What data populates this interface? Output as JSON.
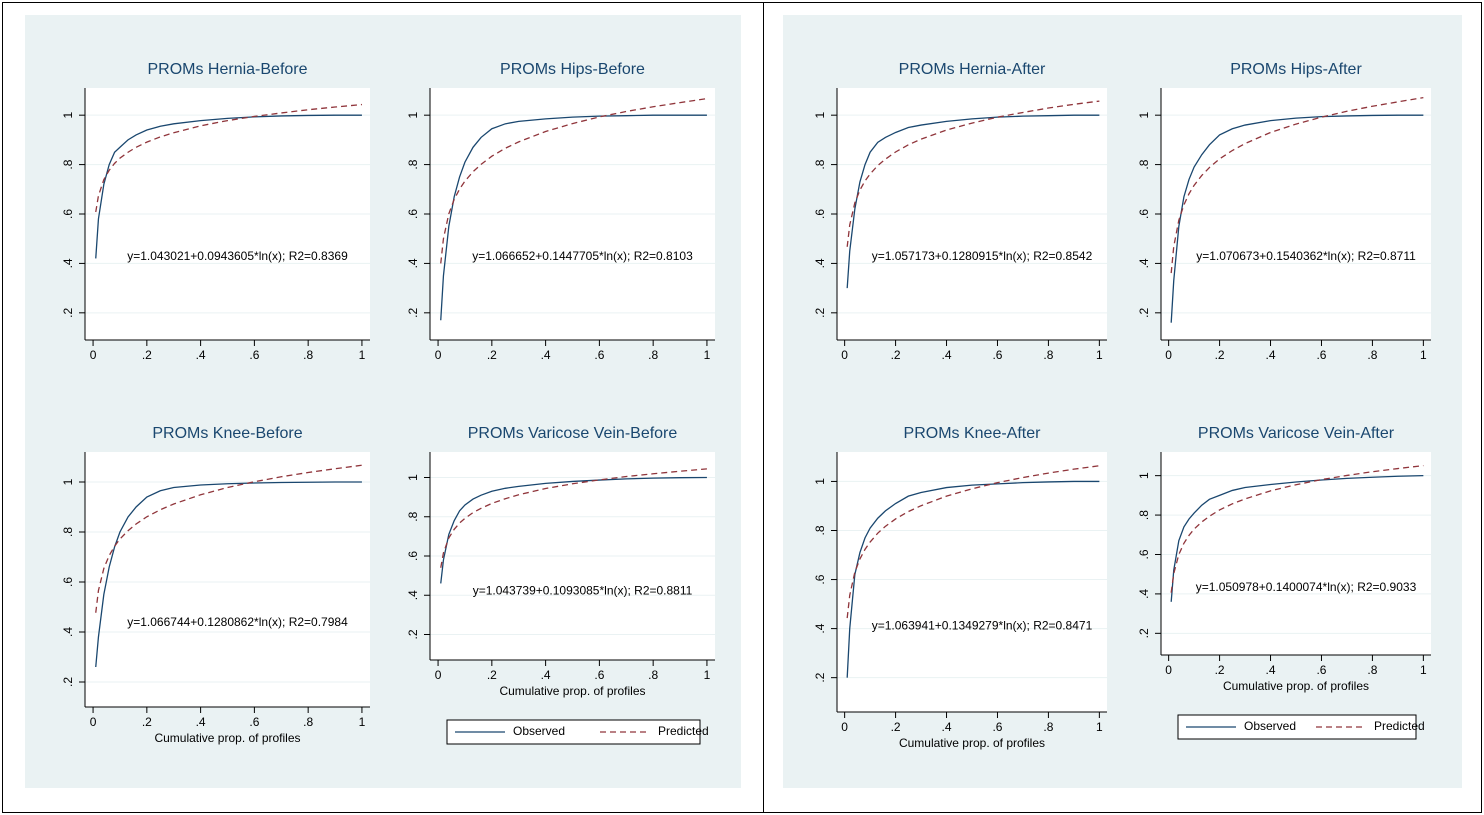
{
  "chart_data": [
    {
      "type": "line",
      "title": "PROMs Hernia-Before",
      "annotation": "y=1.043021+0.0943605*ln(x); R2=0.8369",
      "x": [
        0.01,
        0.02,
        0.04,
        0.06,
        0.08,
        0.1,
        0.13,
        0.16,
        0.2,
        0.25,
        0.3,
        0.4,
        0.5,
        0.6,
        0.7,
        0.8,
        0.9,
        1
      ],
      "series": [
        {
          "color": "#1a476f",
          "dash": false,
          "values": [
            0.42,
            0.58,
            0.72,
            0.8,
            0.85,
            0.87,
            0.9,
            0.92,
            0.94,
            0.955,
            0.965,
            0.978,
            0.987,
            0.993,
            0.997,
            0.999,
            1.0,
            1.0
          ]
        },
        {
          "color": "#90353b",
          "dash": true,
          "values": [
            0.608,
            0.674,
            0.739,
            0.777,
            0.805,
            0.826,
            0.85,
            0.87,
            0.891,
            0.912,
            0.929,
            0.957,
            0.978,
            0.995,
            1.009,
            1.022,
            1.033,
            1.043
          ]
        }
      ],
      "xlim": [
        -0.03,
        1.03
      ],
      "xticks": [
        0,
        {
          "value": 0.2,
          "label": ".2"
        },
        {
          "value": 0.4,
          "label": ".4"
        },
        {
          "value": 0.6,
          "label": ".6"
        },
        {
          "value": 0.8,
          "label": ".8"
        },
        1
      ],
      "ylim": [
        0.09,
        1.11
      ],
      "yticks": [
        {
          "value": 0.2,
          "label": ".2"
        },
        {
          "value": 0.4,
          "label": ".4"
        },
        {
          "value": 0.6,
          "label": ".6"
        },
        {
          "value": 0.8,
          "label": ".8"
        },
        1
      ],
      "grid": true
    },
    {
      "type": "line",
      "title": "PROMs Hips-Before",
      "annotation": "y=1.066652+0.1447705*ln(x); R2=0.8103",
      "x": [
        0.01,
        0.02,
        0.04,
        0.06,
        0.08,
        0.1,
        0.13,
        0.16,
        0.2,
        0.25,
        0.3,
        0.4,
        0.5,
        0.6,
        0.7,
        0.8,
        0.9,
        1
      ],
      "series": [
        {
          "color": "#1a476f",
          "dash": false,
          "values": [
            0.17,
            0.35,
            0.55,
            0.67,
            0.75,
            0.81,
            0.87,
            0.91,
            0.945,
            0.965,
            0.975,
            0.985,
            0.992,
            0.996,
            0.998,
            1.0,
            1.0,
            1.0
          ]
        },
        {
          "color": "#90353b",
          "dash": true,
          "values": [
            0.4,
            0.5,
            0.601,
            0.659,
            0.701,
            0.733,
            0.771,
            0.801,
            0.834,
            0.866,
            0.892,
            0.934,
            0.966,
            0.993,
            1.015,
            1.034,
            1.051,
            1.067
          ]
        }
      ],
      "xlim": [
        -0.03,
        1.03
      ],
      "xticks": [
        0,
        {
          "value": 0.2,
          "label": ".2"
        },
        {
          "value": 0.4,
          "label": ".4"
        },
        {
          "value": 0.6,
          "label": ".6"
        },
        {
          "value": 0.8,
          "label": ".8"
        },
        1
      ],
      "ylim": [
        0.09,
        1.11
      ],
      "yticks": [
        {
          "value": 0.2,
          "label": ".2"
        },
        {
          "value": 0.4,
          "label": ".4"
        },
        {
          "value": 0.6,
          "label": ".6"
        },
        {
          "value": 0.8,
          "label": ".8"
        },
        1
      ],
      "grid": true
    },
    {
      "type": "line",
      "title": "PROMs Knee-Before",
      "annotation": "y=1.066744+0.1280862*ln(x); R2=0.7984",
      "xlabel": "Cumulative prop. of profiles",
      "x": [
        0.01,
        0.02,
        0.04,
        0.06,
        0.08,
        0.1,
        0.13,
        0.16,
        0.2,
        0.25,
        0.3,
        0.4,
        0.5,
        0.6,
        0.7,
        0.8,
        0.9,
        1
      ],
      "series": [
        {
          "color": "#1a476f",
          "dash": false,
          "values": [
            0.26,
            0.38,
            0.55,
            0.66,
            0.74,
            0.8,
            0.86,
            0.9,
            0.94,
            0.965,
            0.978,
            0.988,
            0.993,
            0.996,
            0.998,
            0.999,
            1.0,
            1.0
          ]
        },
        {
          "color": "#90353b",
          "dash": true,
          "values": [
            0.477,
            0.566,
            0.654,
            0.706,
            0.743,
            0.772,
            0.805,
            0.832,
            0.861,
            0.889,
            0.912,
            0.949,
            0.978,
            1.001,
            1.021,
            1.038,
            1.053,
            1.067
          ]
        }
      ],
      "xlim": [
        -0.03,
        1.03
      ],
      "xticks": [
        0,
        {
          "value": 0.2,
          "label": ".2"
        },
        {
          "value": 0.4,
          "label": ".4"
        },
        {
          "value": 0.6,
          "label": ".6"
        },
        {
          "value": 0.8,
          "label": ".8"
        },
        1
      ],
      "ylim": [
        0.1,
        1.12
      ],
      "yticks": [
        {
          "value": 0.2,
          "label": ".2"
        },
        {
          "value": 0.4,
          "label": ".4"
        },
        {
          "value": 0.6,
          "label": ".6"
        },
        {
          "value": 0.8,
          "label": ".8"
        },
        1
      ],
      "grid": true
    },
    {
      "type": "line",
      "title": "PROMs Varicose Vein-Before",
      "annotation": "y=1.043739+0.1093085*ln(x); R2=0.8811",
      "xlabel": "Cumulative prop. of profiles",
      "x": [
        0.01,
        0.02,
        0.04,
        0.06,
        0.08,
        0.1,
        0.13,
        0.16,
        0.2,
        0.25,
        0.3,
        0.4,
        0.5,
        0.6,
        0.7,
        0.8,
        0.9,
        1
      ],
      "series": [
        {
          "name": "Observed",
          "color": "#1a476f",
          "dash": false,
          "values": [
            0.46,
            0.58,
            0.71,
            0.78,
            0.83,
            0.86,
            0.89,
            0.91,
            0.93,
            0.945,
            0.955,
            0.97,
            0.98,
            0.987,
            0.993,
            0.997,
            0.999,
            1.0
          ]
        },
        {
          "name": "Predicted",
          "color": "#90353b",
          "dash": true,
          "values": [
            0.54,
            0.616,
            0.692,
            0.736,
            0.768,
            0.792,
            0.821,
            0.843,
            0.868,
            0.892,
            0.912,
            0.944,
            0.968,
            0.988,
            1.005,
            1.019,
            1.032,
            1.044
          ]
        }
      ],
      "xlim": [
        -0.03,
        1.03
      ],
      "xticks": [
        0,
        {
          "value": 0.2,
          "label": ".2"
        },
        {
          "value": 0.4,
          "label": ".4"
        },
        {
          "value": 0.6,
          "label": ".6"
        },
        {
          "value": 0.8,
          "label": ".8"
        },
        1
      ],
      "ylim": [
        0.07,
        1.13
      ],
      "yticks": [
        {
          "value": 0.2,
          "label": ".2"
        },
        {
          "value": 0.4,
          "label": ".4"
        },
        {
          "value": 0.6,
          "label": ".6"
        },
        {
          "value": 0.8,
          "label": ".8"
        },
        1
      ],
      "grid": true,
      "legend": "bottom"
    },
    {
      "type": "line",
      "title": "PROMs Hernia-After",
      "annotation": "y=1.057173+0.1280915*ln(x); R2=0.8542",
      "x": [
        0.01,
        0.02,
        0.04,
        0.06,
        0.08,
        0.1,
        0.13,
        0.16,
        0.2,
        0.25,
        0.3,
        0.4,
        0.5,
        0.6,
        0.7,
        0.8,
        0.9,
        1
      ],
      "series": [
        {
          "color": "#1a476f",
          "dash": false,
          "values": [
            0.3,
            0.45,
            0.62,
            0.73,
            0.8,
            0.85,
            0.89,
            0.91,
            0.93,
            0.95,
            0.96,
            0.975,
            0.985,
            0.992,
            0.996,
            0.998,
            1.0,
            1.0
          ]
        },
        {
          "color": "#90353b",
          "dash": true,
          "values": [
            0.467,
            0.556,
            0.645,
            0.697,
            0.734,
            0.762,
            0.796,
            0.822,
            0.851,
            0.88,
            0.903,
            0.94,
            0.968,
            0.992,
            1.011,
            1.029,
            1.044,
            1.057
          ]
        }
      ],
      "xlim": [
        -0.03,
        1.03
      ],
      "xticks": [
        0,
        {
          "value": 0.2,
          "label": ".2"
        },
        {
          "value": 0.4,
          "label": ".4"
        },
        {
          "value": 0.6,
          "label": ".6"
        },
        {
          "value": 0.8,
          "label": ".8"
        },
        1
      ],
      "ylim": [
        0.09,
        1.11
      ],
      "yticks": [
        {
          "value": 0.2,
          "label": ".2"
        },
        {
          "value": 0.4,
          "label": ".4"
        },
        {
          "value": 0.6,
          "label": ".6"
        },
        {
          "value": 0.8,
          "label": ".8"
        },
        1
      ],
      "grid": true
    },
    {
      "type": "line",
      "title": "PROMs Hips-After",
      "annotation": "y=1.070673+0.1540362*ln(x); R2=0.8711",
      "x": [
        0.01,
        0.02,
        0.04,
        0.06,
        0.08,
        0.1,
        0.13,
        0.16,
        0.2,
        0.25,
        0.3,
        0.4,
        0.5,
        0.6,
        0.7,
        0.8,
        0.9,
        1
      ],
      "series": [
        {
          "color": "#1a476f",
          "dash": false,
          "values": [
            0.16,
            0.33,
            0.55,
            0.67,
            0.74,
            0.79,
            0.84,
            0.88,
            0.92,
            0.945,
            0.96,
            0.978,
            0.988,
            0.994,
            0.997,
            0.999,
            1.0,
            1.0
          ]
        },
        {
          "color": "#90353b",
          "dash": true,
          "values": [
            0.361,
            0.468,
            0.575,
            0.637,
            0.682,
            0.716,
            0.756,
            0.788,
            0.823,
            0.857,
            0.885,
            0.93,
            0.964,
            0.992,
            1.016,
            1.036,
            1.054,
            1.071
          ]
        }
      ],
      "xlim": [
        -0.03,
        1.03
      ],
      "xticks": [
        0,
        {
          "value": 0.2,
          "label": ".2"
        },
        {
          "value": 0.4,
          "label": ".4"
        },
        {
          "value": 0.6,
          "label": ".6"
        },
        {
          "value": 0.8,
          "label": ".8"
        },
        1
      ],
      "ylim": [
        0.09,
        1.11
      ],
      "yticks": [
        {
          "value": 0.2,
          "label": ".2"
        },
        {
          "value": 0.4,
          "label": ".4"
        },
        {
          "value": 0.6,
          "label": ".6"
        },
        {
          "value": 0.8,
          "label": ".8"
        },
        1
      ],
      "grid": true
    },
    {
      "type": "line",
      "title": "PROMs Knee-After",
      "annotation": "y=1.063941+0.1349279*ln(x); R2=0.8471",
      "xlabel": "Cumulative prop. of profiles",
      "x": [
        0.01,
        0.02,
        0.04,
        0.06,
        0.08,
        0.1,
        0.13,
        0.16,
        0.2,
        0.25,
        0.3,
        0.4,
        0.5,
        0.6,
        0.7,
        0.8,
        0.9,
        1
      ],
      "series": [
        {
          "color": "#1a476f",
          "dash": false,
          "values": [
            0.2,
            0.4,
            0.62,
            0.71,
            0.77,
            0.81,
            0.85,
            0.88,
            0.91,
            0.94,
            0.955,
            0.975,
            0.985,
            0.99,
            0.995,
            0.998,
            1.0,
            1.0
          ]
        },
        {
          "color": "#90353b",
          "dash": true,
          "values": [
            0.443,
            0.536,
            0.63,
            0.684,
            0.723,
            0.753,
            0.789,
            0.817,
            0.847,
            0.877,
            0.901,
            0.94,
            0.97,
            0.995,
            1.016,
            1.034,
            1.05,
            1.064
          ]
        }
      ],
      "xlim": [
        -0.03,
        1.03
      ],
      "xticks": [
        0,
        {
          "value": 0.2,
          "label": ".2"
        },
        {
          "value": 0.4,
          "label": ".4"
        },
        {
          "value": 0.6,
          "label": ".6"
        },
        {
          "value": 0.8,
          "label": ".8"
        },
        1
      ],
      "ylim": [
        0.06,
        1.12
      ],
      "yticks": [
        {
          "value": 0.2,
          "label": ".2"
        },
        {
          "value": 0.4,
          "label": ".4"
        },
        {
          "value": 0.6,
          "label": ".6"
        },
        {
          "value": 0.8,
          "label": ".8"
        },
        1
      ],
      "grid": true
    },
    {
      "type": "line",
      "title": "PROMs Varicose Vein-After",
      "annotation": "y=1.050978+0.1400074*ln(x); R2=0.9033",
      "xlabel": "Cumulative prop. of profiles",
      "x": [
        0.01,
        0.02,
        0.04,
        0.06,
        0.08,
        0.1,
        0.13,
        0.16,
        0.2,
        0.25,
        0.3,
        0.4,
        0.5,
        0.6,
        0.7,
        0.8,
        0.9,
        1
      ],
      "series": [
        {
          "name": "Observed",
          "color": "#1a476f",
          "dash": false,
          "values": [
            0.36,
            0.52,
            0.67,
            0.74,
            0.78,
            0.81,
            0.85,
            0.88,
            0.9,
            0.925,
            0.94,
            0.955,
            0.968,
            0.978,
            0.986,
            0.992,
            0.997,
            1.0
          ]
        },
        {
          "name": "Predicted",
          "color": "#90353b",
          "dash": true,
          "values": [
            0.406,
            0.503,
            0.6,
            0.657,
            0.697,
            0.729,
            0.765,
            0.794,
            0.826,
            0.857,
            0.882,
            0.923,
            0.954,
            0.98,
            1.001,
            1.02,
            1.036,
            1.051
          ]
        }
      ],
      "xlim": [
        -0.03,
        1.03
      ],
      "xticks": [
        0,
        {
          "value": 0.2,
          "label": ".2"
        },
        {
          "value": 0.4,
          "label": ".4"
        },
        {
          "value": 0.6,
          "label": ".6"
        },
        {
          "value": 0.8,
          "label": ".8"
        },
        1
      ],
      "ylim": [
        0.09,
        1.12
      ],
      "yticks": [
        {
          "value": 0.2,
          "label": ".2"
        },
        {
          "value": 0.4,
          "label": ".4"
        },
        {
          "value": 0.6,
          "label": ".6"
        },
        {
          "value": 0.8,
          "label": ".8"
        },
        1
      ],
      "grid": true,
      "legend": "bottom"
    }
  ]
}
